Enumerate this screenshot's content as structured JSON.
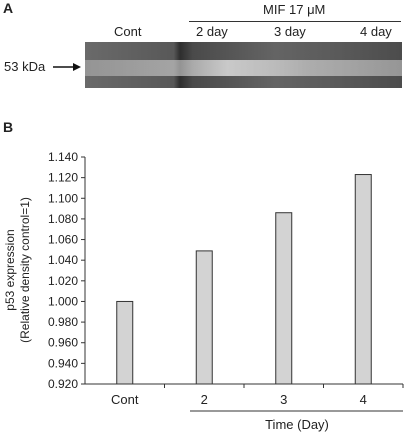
{
  "panel_a": {
    "label": "A",
    "control_label": "Cont",
    "treatment_label": "MIF 17 μM",
    "lane_labels": [
      "2 day",
      "3 day",
      "4 day"
    ],
    "marker_label": "53 kDa"
  },
  "panel_b": {
    "label": "B"
  },
  "chart_data": {
    "type": "bar",
    "categories": [
      "Cont",
      "2",
      "3",
      "4"
    ],
    "values": [
      1.0,
      1.049,
      1.086,
      1.123
    ],
    "title": "",
    "xlabel": "Time (Day)",
    "ylabel": "p53 expression",
    "ylabel_sub": "(Relative density control=1)",
    "ylim": [
      0.92,
      1.14
    ],
    "yticks": [
      "0.920",
      "0.940",
      "0.960",
      "0.980",
      "1.000",
      "1.020",
      "1.040",
      "1.060",
      "1.080",
      "1.100",
      "1.120",
      "1.140"
    ],
    "grid": false,
    "bar_color": "#d3d3d3"
  }
}
